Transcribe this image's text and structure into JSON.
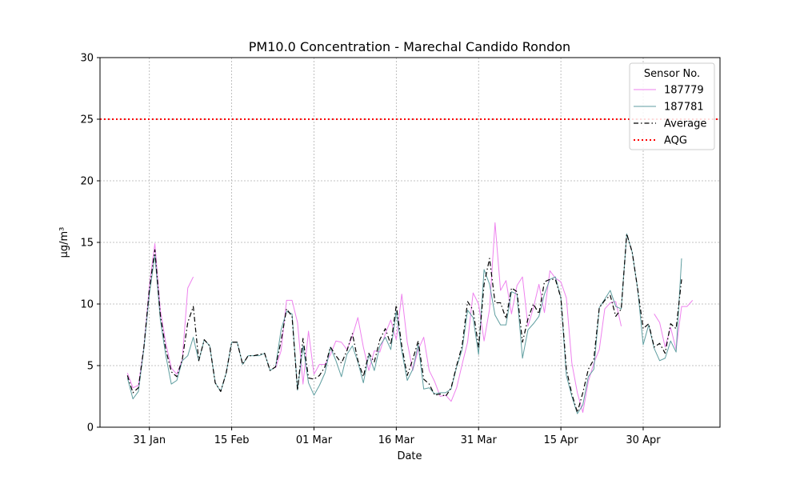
{
  "chart_data": {
    "type": "line",
    "title": "PM10.0 Concentration - Marechal Candido Rondon",
    "xlabel": "Date",
    "ylabel": "μg/m³",
    "ylim": [
      0,
      30
    ],
    "yticks": [
      0,
      5,
      10,
      15,
      20,
      25,
      30
    ],
    "xlim": [
      "2024-01-22",
      "2024-05-14"
    ],
    "xticks": [
      {
        "date": "2024-01-31",
        "label": "31 Jan"
      },
      {
        "date": "2024-02-15",
        "label": "15 Feb"
      },
      {
        "date": "2024-03-01",
        "label": "01 Mar"
      },
      {
        "date": "2024-03-16",
        "label": "16 Mar"
      },
      {
        "date": "2024-03-31",
        "label": "31 Mar"
      },
      {
        "date": "2024-04-15",
        "label": "15 Apr"
      },
      {
        "date": "2024-04-30",
        "label": "30 Apr"
      }
    ],
    "grid": true,
    "legend": {
      "title": "Sensor No.",
      "position": "top-right"
    },
    "start_date": "2024-01-27",
    "series": [
      {
        "name": "187779",
        "color": "#ee82ee",
        "style": "solid",
        "values": [
          4.4,
          3.2,
          3.4,
          6.5,
          11.5,
          14.9,
          9.5,
          6.8,
          4.8,
          4.3,
          5.5,
          11.3,
          12.2,
          null,
          null,
          null,
          null,
          null,
          null,
          null,
          null,
          null,
          null,
          null,
          null,
          null,
          null,
          4.8,
          6.2,
          10.3,
          10.3,
          8.5,
          3.5,
          7.8,
          4.3,
          5.1,
          5.1,
          5.9,
          7.0,
          6.9,
          6.3,
          7.4,
          8.9,
          6.5,
          4.6,
          6.2,
          6.1,
          7.6,
          8.7,
          7.1,
          10.8,
          6.9,
          4.6,
          6.3,
          7.3,
          4.6,
          3.7,
          2.5,
          2.6,
          2.1,
          3.2,
          5.1,
          6.9,
          10.9,
          10.0,
          7.0,
          9.6,
          16.6,
          11.1,
          11.9,
          9.2,
          11.5,
          12.2,
          8.2,
          9.7,
          11.6,
          9.3,
          12.7,
          12.1,
          11.8,
          10.5,
          5.2,
          2.8,
          1.2,
          3.7,
          5.2,
          6.3,
          9.6,
          10.1,
          10.2,
          8.2,
          null,
          null,
          null,
          null,
          null,
          9.2,
          8.5,
          6.5,
          8.1,
          6.3,
          9.8,
          9.8,
          10.3
        ]
      },
      {
        "name": "187781",
        "color": "#5f9ea0",
        "style": "solid",
        "values": [
          4.0,
          2.3,
          2.9,
          6.4,
          10.8,
          14.0,
          8.7,
          5.8,
          3.5,
          3.8,
          5.4,
          5.8,
          7.3,
          5.4,
          7.1,
          6.6,
          3.6,
          2.9,
          4.4,
          6.9,
          6.9,
          5.1,
          5.8,
          5.8,
          5.8,
          6.0,
          4.6,
          4.9,
          7.9,
          9.4,
          9.2,
          3.0,
          6.6,
          3.6,
          2.6,
          3.4,
          4.4,
          6.5,
          5.4,
          4.1,
          5.9,
          6.6,
          5.3,
          3.6,
          5.9,
          4.6,
          6.6,
          7.3,
          6.3,
          9.4,
          6.2,
          3.8,
          4.7,
          6.7,
          3.1,
          3.2,
          2.7,
          2.8,
          2.8,
          3.1,
          4.9,
          6.3,
          9.5,
          8.9,
          5.9,
          12.8,
          11.6,
          9.1,
          8.3,
          8.3,
          11.0,
          10.8,
          5.6,
          7.9,
          8.4,
          9.0,
          10.8,
          12.0,
          12.2,
          10.5,
          4.2,
          2.5,
          1.1,
          1.8,
          4.1,
          4.7,
          9.7,
          10.4,
          11.1,
          9.8,
          9.6,
          15.7,
          14.2,
          11.2,
          6.7,
          8.3,
          6.4,
          5.4,
          5.6,
          7.0,
          6.1,
          13.7
        ]
      },
      {
        "name": "Average",
        "color": "#000000",
        "style": "dashdot",
        "values": [
          4.2,
          2.8,
          3.2,
          6.5,
          11.2,
          14.4,
          9.1,
          6.3,
          4.5,
          4.1,
          5.5,
          8.5,
          9.8,
          5.4,
          7.1,
          6.6,
          3.6,
          2.9,
          4.4,
          6.9,
          6.9,
          5.1,
          5.8,
          5.8,
          5.9,
          6.0,
          4.6,
          4.9,
          7.0,
          9.6,
          9.0,
          3.0,
          7.2,
          4.0,
          3.9,
          4.2,
          4.9,
          6.5,
          5.8,
          5.2,
          6.2,
          7.6,
          5.4,
          4.1,
          6.0,
          5.3,
          7.1,
          8.0,
          6.7,
          9.9,
          6.6,
          4.2,
          5.5,
          7.0,
          3.9,
          3.5,
          2.6,
          2.7,
          2.5,
          3.2,
          5.0,
          6.6,
          10.2,
          9.5,
          6.5,
          11.6,
          13.7,
          10.1,
          10.1,
          8.8,
          11.3,
          11.0,
          6.9,
          8.8,
          10.0,
          9.2,
          11.8,
          12.0,
          12.0,
          10.5,
          4.7,
          2.7,
          1.2,
          2.8,
          4.7,
          5.5,
          9.7,
          10.3,
          10.7,
          9.0,
          9.6,
          15.7,
          14.2,
          11.2,
          8.0,
          8.4,
          6.5,
          6.8,
          6.0,
          8.4,
          8.0,
          12.0
        ]
      }
    ],
    "reference_lines": [
      {
        "name": "AQG",
        "value": 25,
        "color": "#ff0000",
        "style": "dotted"
      }
    ]
  }
}
